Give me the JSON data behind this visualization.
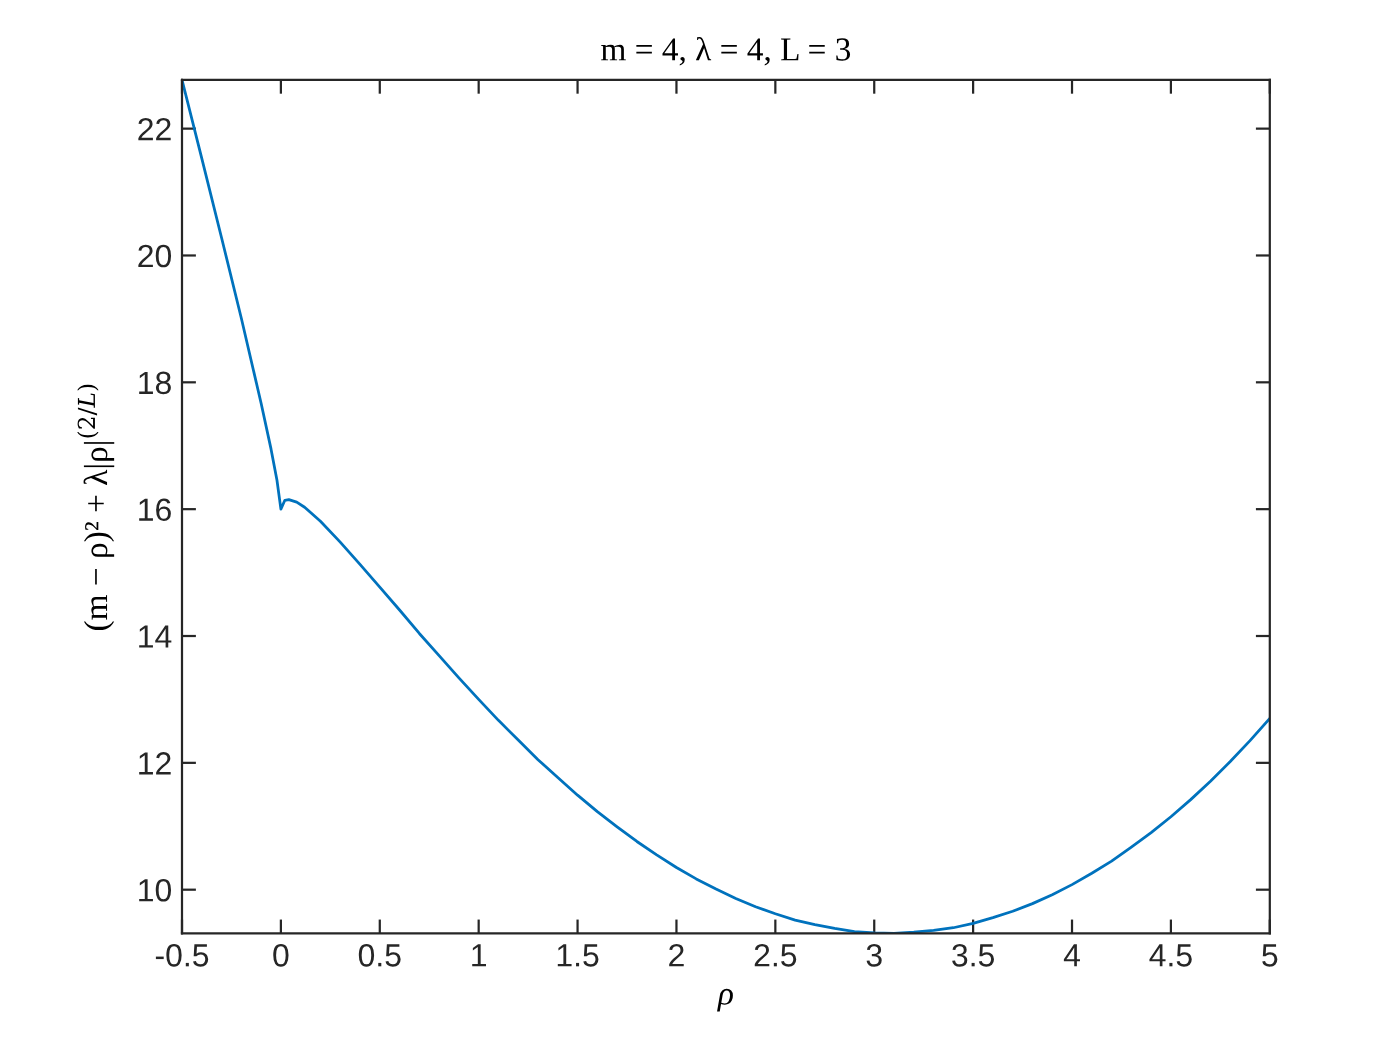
{
  "chart_data": {
    "type": "line",
    "title": "m = 4, λ = 4, L = 3",
    "xlabel": "ρ",
    "ylabel": "(m − ρ)² + λ|ρ|$^{(2/L)}$",
    "xlim": [
      -0.5,
      5
    ],
    "ylim": [
      9.31,
      22.77
    ],
    "xticks": [
      -0.5,
      0,
      0.5,
      1,
      1.5,
      2,
      2.5,
      3,
      3.5,
      4,
      4.5,
      5
    ],
    "yticks": [
      10,
      12,
      14,
      16,
      18,
      20,
      22
    ],
    "line_style": "solid",
    "x": [
      -0.5,
      -0.4,
      -0.3,
      -0.2,
      -0.1,
      -0.05,
      -0.02,
      0,
      0.02,
      0.04,
      0.08,
      0.12,
      0.2,
      0.3,
      0.4,
      0.5,
      0.6,
      0.7,
      0.8,
      0.9,
      1.0,
      1.1,
      1.2,
      1.3,
      1.4,
      1.5,
      1.6,
      1.7,
      1.8,
      1.9,
      2.0,
      2.1,
      2.2,
      2.3,
      2.4,
      2.5,
      2.6,
      2.7,
      2.8,
      2.9,
      3.0,
      3.1,
      3.2,
      3.3,
      3.4,
      3.5,
      3.6,
      3.7,
      3.8,
      3.9,
      4.0,
      4.1,
      4.2,
      4.3,
      4.4,
      4.5,
      4.6,
      4.7,
      4.8,
      4.9,
      5.0
    ],
    "series": [
      {
        "color": "#0072bd",
        "values": [
          22.77,
          21.53,
          20.28,
          19.01,
          17.67,
          16.95,
          16.46,
          16.0,
          16.14,
          16.15,
          16.11,
          16.03,
          15.81,
          15.48,
          15.13,
          14.77,
          14.41,
          14.04,
          13.69,
          13.34,
          13.0,
          12.67,
          12.36,
          12.05,
          11.77,
          11.49,
          11.23,
          10.99,
          10.76,
          10.55,
          10.35,
          10.17,
          10.01,
          9.86,
          9.73,
          9.62,
          9.52,
          9.45,
          9.39,
          9.34,
          9.32,
          9.31,
          9.33,
          9.36,
          9.4,
          9.47,
          9.56,
          9.66,
          9.78,
          9.92,
          10.08,
          10.26,
          10.45,
          10.67,
          10.9,
          11.15,
          11.42,
          11.71,
          12.02,
          12.35,
          12.7
        ]
      }
    ]
  }
}
